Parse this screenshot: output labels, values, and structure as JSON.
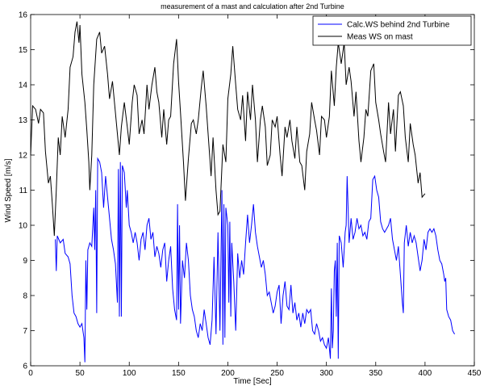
{
  "chart_data": {
    "type": "line",
    "title": "measurement of a mast and calculation after 2nd Turbine",
    "x_label": "Time   [Sec]",
    "y_label": "Wind Speed    [m/s]",
    "xlim": [
      0,
      450
    ],
    "xticks": [
      0,
      50,
      100,
      150,
      200,
      250,
      300,
      350,
      400,
      450
    ],
    "ylim": [
      6,
      16
    ],
    "yticks": [
      6,
      7,
      8,
      9,
      10,
      11,
      12,
      13,
      14,
      15,
      16
    ],
    "legend": "upper right",
    "series": [
      {
        "name": "Calc.WS behind 2nd Turbine",
        "color": "#0000ff",
        "x": [
          25,
          26,
          27,
          30,
          33,
          35,
          38,
          40,
          42,
          44,
          46,
          48,
          50,
          52,
          54,
          55,
          56,
          57,
          58,
          60,
          62,
          64,
          65,
          66,
          67,
          68,
          70,
          72,
          74,
          76,
          78,
          80,
          82,
          84,
          86,
          88,
          89,
          90,
          91,
          92,
          93,
          95,
          97,
          98,
          100,
          102,
          104,
          106,
          108,
          110,
          112,
          114,
          116,
          118,
          120,
          122,
          124,
          126,
          128,
          130,
          132,
          134,
          136,
          138,
          140,
          142,
          144,
          146,
          148,
          149,
          150,
          151,
          152,
          154,
          156,
          158,
          160,
          162,
          164,
          166,
          168,
          170,
          172,
          174,
          176,
          178,
          180,
          182,
          184,
          186,
          188,
          190,
          192,
          194,
          195,
          196,
          197,
          198,
          200,
          201,
          202,
          203,
          204,
          206,
          208,
          210,
          212,
          214,
          216,
          218,
          220,
          222,
          224,
          226,
          228,
          230,
          232,
          234,
          236,
          238,
          240,
          242,
          244,
          246,
          248,
          250,
          252,
          254,
          256,
          258,
          260,
          262,
          264,
          266,
          268,
          270,
          272,
          274,
          276,
          278,
          280,
          282,
          284,
          286,
          288,
          290,
          292,
          294,
          296,
          298,
          300,
          302,
          304,
          305,
          306,
          307,
          308,
          309,
          310,
          311,
          312,
          313,
          315,
          317,
          319,
          320,
          321,
          323,
          325,
          327,
          329,
          331,
          333,
          335,
          337,
          339,
          341,
          343,
          345,
          347,
          349,
          351,
          353,
          355,
          357,
          359,
          361,
          363,
          365,
          367,
          369,
          371,
          373,
          375,
          377,
          378,
          379,
          381,
          383,
          385,
          387,
          389,
          391,
          393,
          395,
          397,
          399,
          401,
          403,
          405,
          407,
          409,
          411,
          413,
          415,
          417,
          419,
          420,
          421,
          422,
          424,
          426,
          428,
          430
        ],
        "values": [
          9.6,
          8.7,
          9.7,
          9.5,
          9.6,
          9.2,
          9.1,
          8.9,
          8.0,
          7.5,
          7.4,
          7.2,
          7.1,
          7.2,
          6.8,
          6.1,
          9.0,
          7.6,
          9.3,
          9.5,
          9.4,
          10.5,
          9.3,
          11.0,
          7.5,
          11.9,
          11.8,
          11.5,
          10.5,
          11.4,
          10.8,
          10.2,
          9.6,
          9.3,
          8.9,
          7.8,
          11.6,
          7.4,
          11.8,
          7.4,
          11.7,
          11.5,
          10.5,
          11.0,
          10.0,
          9.8,
          9.5,
          9.8,
          9.5,
          9.0,
          9.6,
          9.8,
          9.3,
          10.0,
          10.2,
          9.6,
          9.8,
          9.1,
          9.4,
          9.2,
          8.8,
          9.3,
          9.5,
          8.4,
          9.0,
          9.4,
          8.2,
          7.6,
          7.3,
          10.6,
          7.6,
          10.0,
          7.2,
          9.0,
          8.5,
          9.5,
          9.0,
          8.0,
          7.6,
          7.4,
          7.0,
          6.8,
          7.2,
          7.0,
          7.6,
          7.2,
          6.8,
          6.6,
          7.3,
          9.1,
          6.9,
          9.8,
          7.0,
          11.0,
          6.6,
          10.6,
          6.8,
          10.5,
          10.0,
          7.8,
          10.1,
          7.4,
          9.5,
          8.4,
          7.0,
          9.2,
          8.5,
          9.0,
          8.6,
          9.5,
          10.3,
          9.5,
          10.0,
          10.6,
          9.8,
          9.4,
          9.1,
          8.8,
          9.0,
          8.6,
          8.0,
          8.1,
          7.8,
          7.5,
          7.7,
          8.1,
          8.3,
          7.2,
          8.0,
          8.4,
          7.7,
          7.6,
          8.3,
          7.5,
          7.8,
          7.3,
          7.5,
          7.1,
          7.5,
          7.2,
          7.6,
          7.5,
          7.6,
          7.0,
          6.9,
          7.2,
          7.0,
          6.7,
          6.8,
          6.6,
          6.5,
          6.8,
          6.2,
          8.2,
          6.5,
          7.0,
          8.7,
          9.0,
          7.4,
          9.5,
          6.2,
          9.7,
          9.5,
          8.8,
          9.8,
          10.0,
          11.4,
          9.5,
          10.2,
          9.6,
          9.8,
          10.2,
          9.9,
          10.0,
          9.7,
          9.8,
          9.6,
          10.1,
          10.2,
          11.3,
          11.4,
          11.0,
          10.8,
          10.1,
          9.9,
          9.8,
          9.9,
          10.0,
          10.2,
          9.6,
          9.3,
          9.0,
          9.4,
          8.6,
          7.8,
          7.5,
          9.5,
          10.0,
          9.4,
          9.8,
          9.5,
          9.7,
          9.5,
          9.1,
          8.7,
          9.0,
          9.6,
          9.3,
          9.8,
          9.9,
          9.8,
          9.9,
          9.7,
          9.3,
          9.0,
          8.9,
          8.6,
          8.4,
          8.5,
          7.6,
          7.4,
          7.3,
          7.0,
          6.9
        ]
      },
      {
        "name": "Meas WS on mast",
        "color": "#000000",
        "x": [
          0,
          2,
          5,
          8,
          10,
          13,
          15,
          18,
          20,
          22,
          24,
          26,
          28,
          30,
          32,
          35,
          38,
          40,
          43,
          45,
          47,
          49,
          50,
          52,
          55,
          57,
          59,
          60,
          62,
          64,
          67,
          70,
          72,
          75,
          78,
          80,
          83,
          85,
          88,
          90,
          92,
          95,
          98,
          100,
          103,
          105,
          108,
          110,
          113,
          115,
          118,
          120,
          123,
          126,
          128,
          130,
          133,
          135,
          138,
          140,
          142,
          145,
          148,
          150,
          152,
          155,
          157,
          160,
          163,
          165,
          168,
          170,
          173,
          175,
          178,
          180,
          183,
          185,
          188,
          190,
          192,
          195,
          198,
          200,
          203,
          205,
          208,
          210,
          213,
          215,
          218,
          220,
          223,
          225,
          228,
          230,
          233,
          235,
          238,
          240,
          243,
          245,
          248,
          250,
          253,
          255,
          258,
          260,
          263,
          265,
          268,
          270,
          273,
          275,
          278,
          280,
          283,
          285,
          288,
          290,
          293,
          295,
          298,
          300,
          303,
          305,
          308,
          310,
          312,
          315,
          318,
          320,
          323,
          325,
          328,
          330,
          333,
          335,
          338,
          340,
          342,
          345,
          348,
          350,
          353,
          355,
          358,
          360,
          363,
          365,
          368,
          370,
          373,
          375,
          378,
          380,
          383,
          385,
          388,
          390,
          393,
          395,
          397,
          400
        ],
        "values": [
          12.0,
          13.4,
          13.3,
          12.9,
          13.3,
          13.2,
          12.1,
          11.2,
          11.4,
          10.6,
          9.7,
          11.0,
          12.5,
          12.0,
          13.1,
          12.5,
          13.3,
          14.5,
          14.8,
          15.5,
          15.8,
          15.2,
          15.7,
          14.3,
          13.5,
          12.7,
          11.8,
          11.0,
          12.0,
          14.0,
          15.3,
          15.5,
          14.9,
          15.1,
          14.3,
          13.6,
          14.1,
          13.5,
          12.6,
          12.0,
          12.8,
          13.5,
          12.8,
          12.3,
          13.5,
          14.0,
          13.7,
          12.6,
          13.0,
          12.6,
          14.0,
          13.3,
          14.0,
          14.5,
          13.8,
          13.5,
          12.5,
          13.3,
          12.3,
          13.0,
          13.1,
          14.6,
          15.3,
          14.1,
          13.2,
          11.8,
          10.7,
          11.9,
          12.9,
          13.0,
          12.6,
          13.0,
          13.9,
          14.4,
          13.4,
          12.6,
          11.4,
          12.5,
          11.0,
          10.3,
          10.4,
          12.3,
          11.8,
          13.6,
          14.3,
          15.1,
          14.0,
          13.3,
          13.0,
          13.7,
          12.4,
          13.8,
          13.0,
          14.0,
          13.0,
          11.8,
          13.0,
          13.4,
          12.8,
          11.7,
          12.0,
          13.0,
          12.8,
          13.1,
          12.0,
          11.4,
          12.8,
          12.5,
          13.0,
          12.4,
          11.9,
          12.8,
          11.8,
          11.7,
          11.0,
          12.1,
          12.6,
          13.5,
          13.0,
          12.7,
          12.0,
          13.1,
          13.0,
          12.5,
          13.1,
          14.4,
          13.4,
          14.5,
          15.2,
          14.6,
          15.2,
          14.0,
          14.5,
          14.1,
          13.1,
          13.8,
          12.4,
          11.8,
          12.5,
          13.3,
          13.1,
          14.4,
          14.6,
          13.5,
          13.0,
          12.6,
          12.1,
          11.8,
          13.5,
          12.6,
          13.3,
          12.1,
          13.7,
          13.8,
          13.4,
          12.5,
          11.8,
          12.9,
          12.3,
          12.0,
          11.2,
          11.5,
          10.8,
          10.9
        ]
      }
    ]
  }
}
